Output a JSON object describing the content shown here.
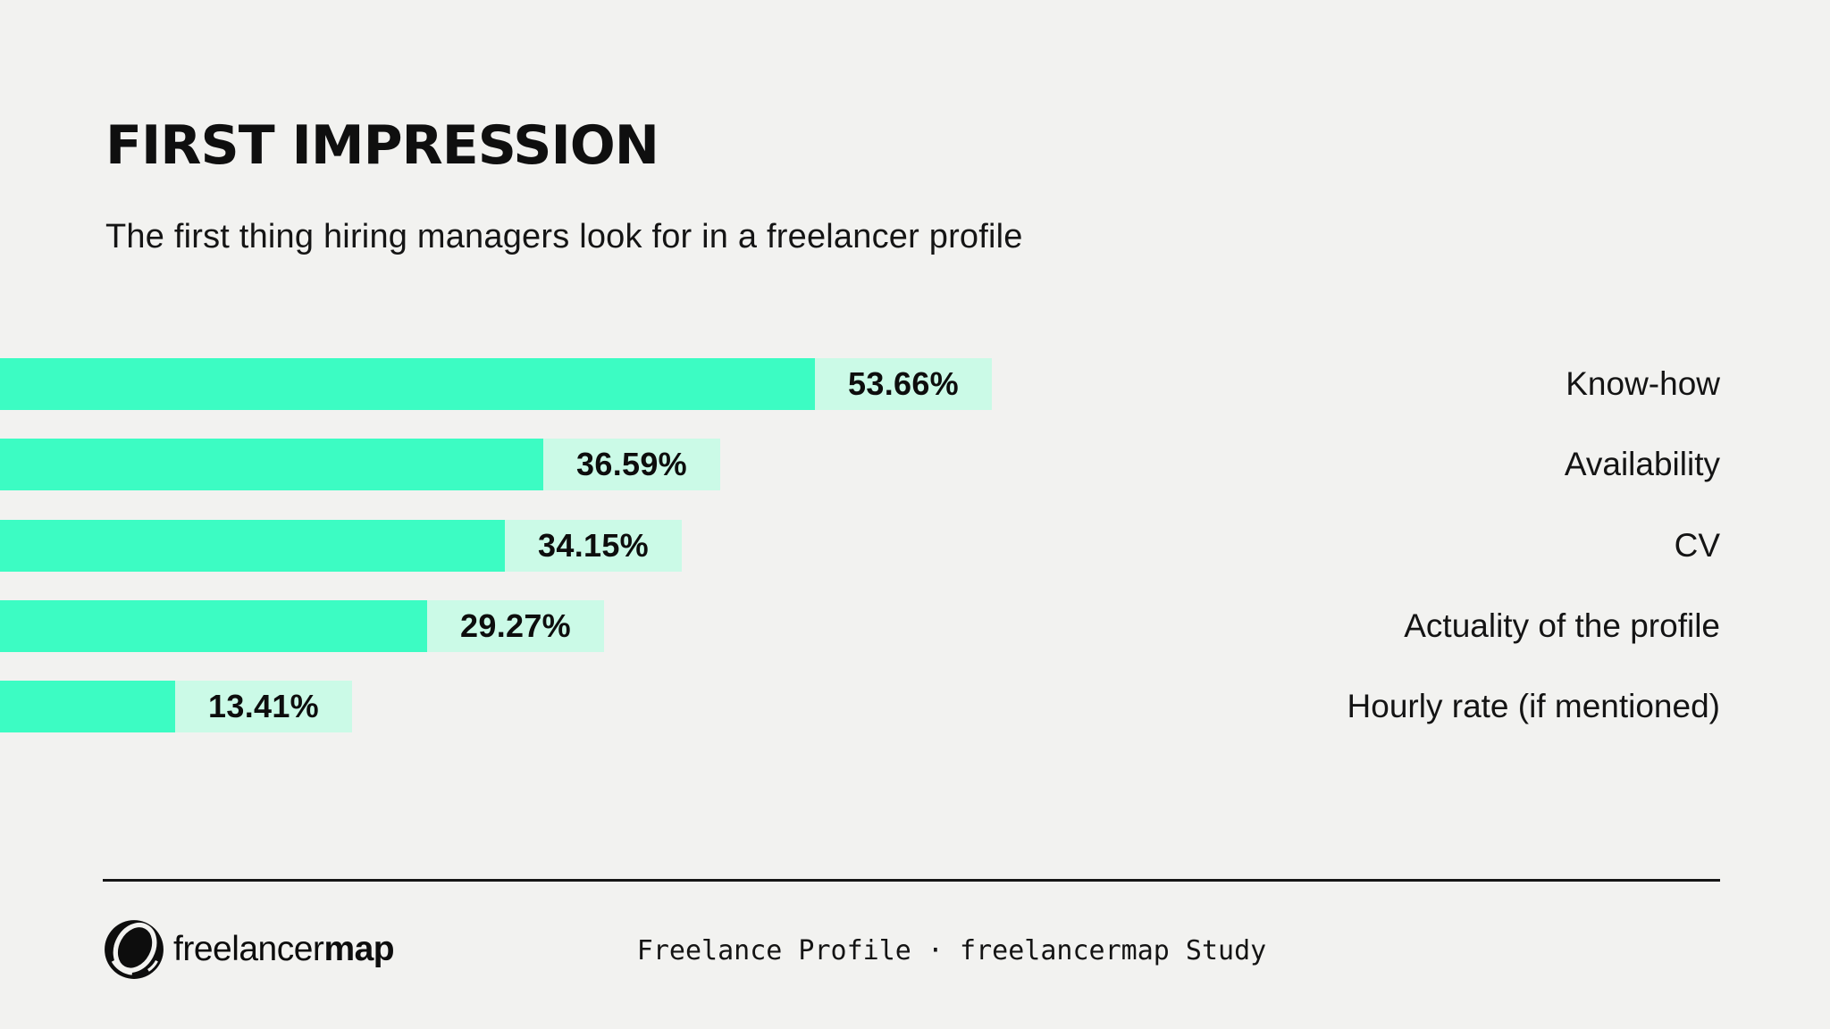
{
  "page": {
    "background": "#f2f2f0",
    "accent": "#3cfcc3",
    "accent_light": "#cbfae7",
    "text_color": "#121212"
  },
  "header": {
    "title": "FIRST IMPRESSION",
    "subtitle": "The first thing hiring managers look for in a freelancer profile"
  },
  "chart_data": {
    "type": "bar",
    "orientation": "horizontal",
    "title": "FIRST IMPRESSION",
    "subtitle": "The first thing hiring managers look for in a freelancer profile",
    "categories": [
      "Know-how",
      "Availability",
      "CV",
      "Actuality of the profile",
      "Hourly rate (if mentioned)"
    ],
    "values": [
      53.66,
      36.59,
      34.15,
      29.27,
      13.41
    ],
    "value_labels": [
      "53.66%",
      "36.59%",
      "34.15%",
      "29.27%",
      "13.41%"
    ],
    "xlim": [
      0,
      100
    ],
    "grid": false,
    "legend": false,
    "bar_color": "#3cfcc3",
    "value_box_color": "#cbfae7",
    "category_label_position": "right"
  },
  "footer": {
    "brand_regular": "freelancer",
    "brand_bold": "map",
    "logo_icon": "freelancermap-globe-icon",
    "caption": "Freelance Profile · freelancermap Study"
  }
}
